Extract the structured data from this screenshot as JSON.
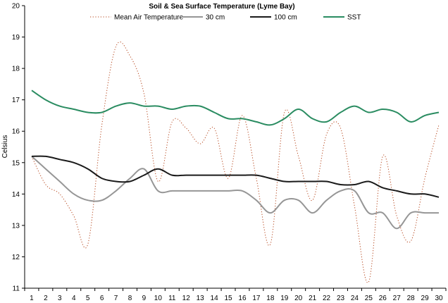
{
  "chart_data": {
    "type": "line",
    "title": "Soil & Sea Surface Temperature (Lyme Bay)",
    "xlabel": "",
    "ylabel": "Celsius",
    "ylim": [
      11,
      20
    ],
    "yticks": [
      11,
      12,
      13,
      14,
      15,
      16,
      17,
      18,
      19,
      20
    ],
    "grid": false,
    "legend_position": "top",
    "x": [
      1,
      2,
      3,
      4,
      5,
      6,
      7,
      8,
      9,
      10,
      11,
      12,
      13,
      14,
      15,
      16,
      17,
      18,
      19,
      20,
      21,
      22,
      23,
      24,
      25,
      26,
      27,
      28,
      29,
      30
    ],
    "series": [
      {
        "name": "Mean Air Temperature",
        "color": "#b5451b",
        "style": "dotted",
        "values": [
          15.2,
          14.3,
          14.0,
          13.3,
          12.4,
          16.2,
          18.7,
          18.4,
          17.2,
          14.4,
          16.3,
          16.1,
          15.6,
          16.1,
          14.5,
          16.5,
          14.5,
          12.4,
          16.6,
          15.2,
          13.8,
          15.9,
          16.1,
          13.6,
          11.2,
          15.2,
          13.3,
          12.5,
          14.5,
          16.2
        ]
      },
      {
        "name": "30 cm",
        "color": "#969696",
        "style": "solid",
        "values": [
          15.2,
          14.8,
          14.4,
          14.0,
          13.8,
          13.8,
          14.1,
          14.5,
          14.8,
          14.1,
          14.1,
          14.1,
          14.1,
          14.1,
          14.1,
          14.1,
          13.8,
          13.4,
          13.8,
          13.8,
          13.4,
          13.8,
          14.1,
          14.1,
          13.4,
          13.4,
          12.9,
          13.4,
          13.4,
          13.4
        ]
      },
      {
        "name": "100 cm",
        "color": "#1a1a1a",
        "style": "solid",
        "values": [
          15.2,
          15.2,
          15.1,
          15.0,
          14.8,
          14.5,
          14.4,
          14.4,
          14.6,
          14.8,
          14.6,
          14.6,
          14.6,
          14.6,
          14.6,
          14.6,
          14.6,
          14.5,
          14.4,
          14.4,
          14.4,
          14.4,
          14.3,
          14.3,
          14.4,
          14.2,
          14.1,
          14.0,
          14.0,
          13.9
        ]
      },
      {
        "name": "SST",
        "color": "#2a8c61",
        "style": "solid",
        "values": [
          17.3,
          17.0,
          16.8,
          16.7,
          16.6,
          16.6,
          16.8,
          16.9,
          16.8,
          16.8,
          16.7,
          16.8,
          16.8,
          16.6,
          16.4,
          16.4,
          16.3,
          16.2,
          16.4,
          16.7,
          16.4,
          16.3,
          16.6,
          16.8,
          16.6,
          16.7,
          16.6,
          16.3,
          16.5,
          16.6
        ]
      }
    ]
  }
}
